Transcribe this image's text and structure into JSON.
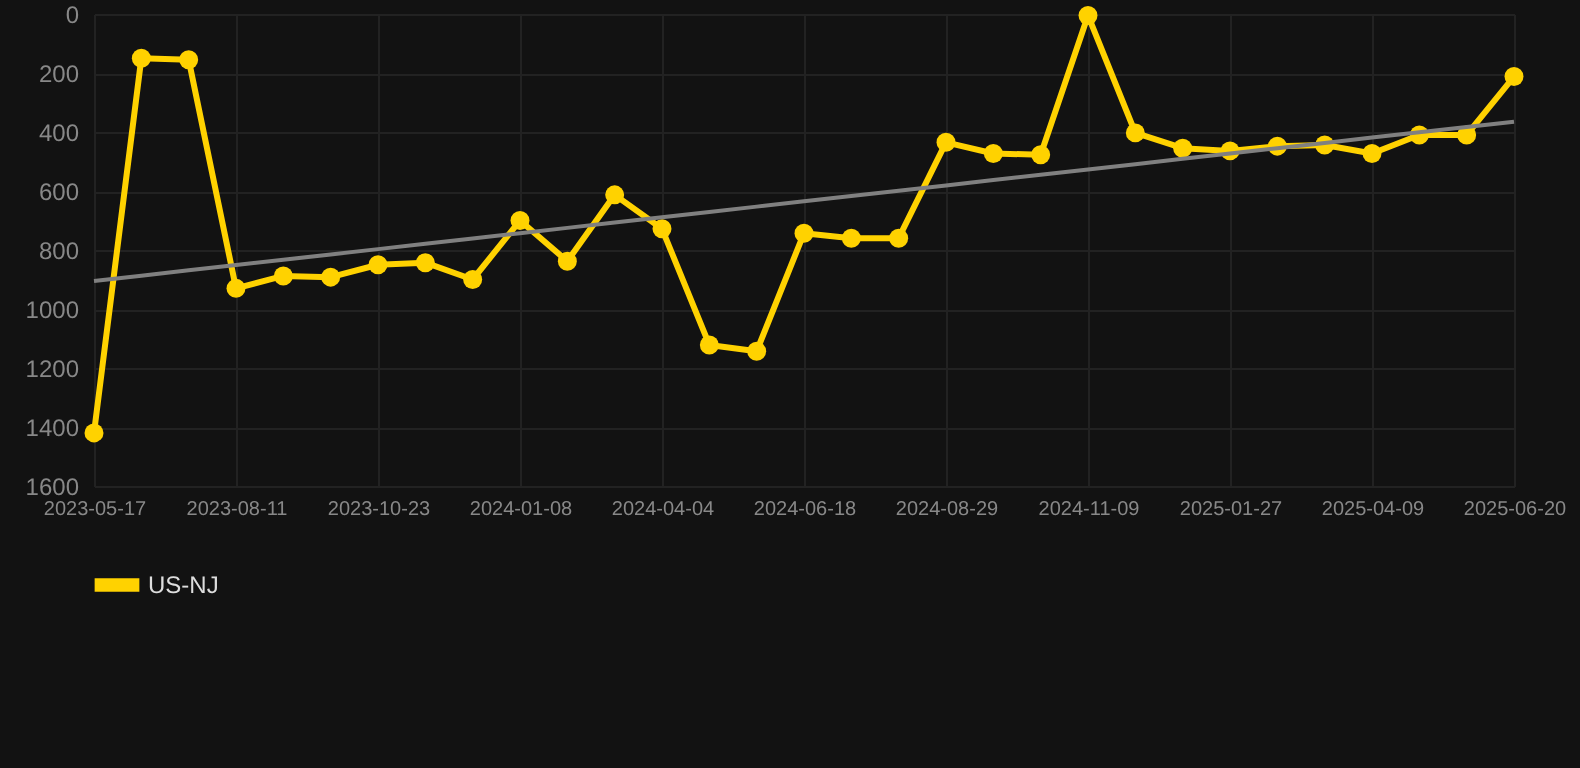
{
  "chart_data": {
    "type": "line",
    "categories": [
      "2023-05-17",
      null,
      null,
      "2023-08-11",
      null,
      null,
      "2023-10-23",
      null,
      null,
      "2024-01-08",
      null,
      null,
      "2024-04-04",
      null,
      null,
      "2024-06-18",
      null,
      null,
      "2024-08-29",
      null,
      null,
      "2024-11-09",
      null,
      null,
      "2025-01-27",
      null,
      null,
      "2025-04-09",
      null,
      null,
      "2025-06-20"
    ],
    "series": [
      {
        "name": "US-NJ",
        "color": "#ffd200",
        "values": [
          1420,
          150,
          155,
          930,
          888,
          892,
          850,
          843,
          900,
          700,
          838,
          613,
          728,
          1122,
          1143,
          743,
          760,
          760,
          435,
          473,
          477,
          5,
          403,
          455,
          464,
          448,
          444,
          473,
          410,
          410,
          212
        ]
      },
      {
        "type": "line",
        "color": "#808080",
        "marker": "none",
        "values": [
          905,
          887,
          869,
          851,
          833,
          815,
          797,
          779,
          761,
          743,
          725,
          707,
          689,
          671,
          653,
          635,
          617,
          599,
          581,
          563,
          545,
          527,
          509,
          491,
          473,
          455,
          437,
          419,
          401,
          383,
          365
        ]
      }
    ],
    "ylim": [
      1600,
      0
    ],
    "yticks": [
      0,
      200,
      400,
      600,
      800,
      1000,
      1200,
      1400,
      1600
    ],
    "grid": true,
    "legend": "bottom",
    "marker": "circle",
    "line_style": "solid"
  }
}
